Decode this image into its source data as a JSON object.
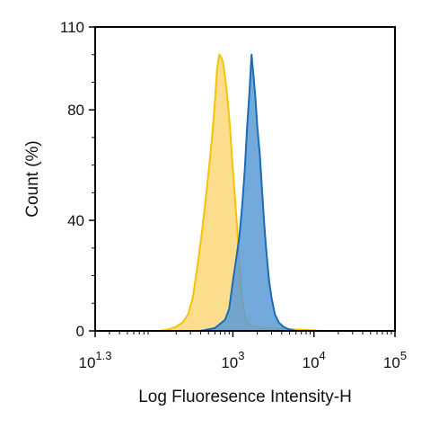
{
  "chart_data": {
    "type": "area",
    "xlabel": "Log Fluoresence Intensity-H",
    "ylabel": "Count  (%)",
    "x_scale": "log",
    "xlim": [
      20,
      100000
    ],
    "ylim": [
      0,
      110
    ],
    "x_ticks": [
      {
        "value": 20,
        "base": "10",
        "exp": "1.3"
      },
      {
        "value": 1000,
        "base": "10",
        "exp": "3"
      },
      {
        "value": 10000,
        "base": "10",
        "exp": "4"
      },
      {
        "value": 100000,
        "base": "10",
        "exp": "5"
      }
    ],
    "y_ticks": [
      "0",
      "40",
      "80",
      "110"
    ],
    "y_tick_values": [
      0,
      40,
      80,
      110
    ],
    "grid": false,
    "legend": "none",
    "series": [
      {
        "color": "#f5c400",
        "fill": "#fbd77a",
        "points": [
          [
            120,
            0
          ],
          [
            160,
            0.5
          ],
          [
            200,
            1.5
          ],
          [
            240,
            3
          ],
          [
            280,
            6
          ],
          [
            320,
            12
          ],
          [
            360,
            22
          ],
          [
            400,
            32
          ],
          [
            440,
            42
          ],
          [
            480,
            52
          ],
          [
            520,
            62
          ],
          [
            560,
            72
          ],
          [
            600,
            83
          ],
          [
            640,
            95
          ],
          [
            680,
            100
          ],
          [
            720,
            99
          ],
          [
            760,
            97
          ],
          [
            800,
            92
          ],
          [
            860,
            84
          ],
          [
            920,
            74
          ],
          [
            980,
            62
          ],
          [
            1040,
            52
          ],
          [
            1100,
            42
          ],
          [
            1150,
            34
          ],
          [
            1200,
            24
          ],
          [
            1260,
            16
          ],
          [
            1320,
            10
          ],
          [
            1400,
            6
          ],
          [
            1500,
            3
          ],
          [
            1700,
            2
          ],
          [
            2000,
            1.5
          ],
          [
            2500,
            1
          ],
          [
            3000,
            1
          ],
          [
            4000,
            0.8
          ],
          [
            6000,
            0.5
          ],
          [
            9000,
            0.3
          ],
          [
            12000,
            0
          ]
        ]
      },
      {
        "color": "#1c6bb5",
        "fill": "#5b9bd5",
        "points": [
          [
            400,
            0
          ],
          [
            600,
            1
          ],
          [
            800,
            4
          ],
          [
            900,
            8
          ],
          [
            1000,
            18
          ],
          [
            1100,
            26
          ],
          [
            1200,
            34
          ],
          [
            1300,
            45
          ],
          [
            1400,
            58
          ],
          [
            1500,
            74
          ],
          [
            1600,
            86
          ],
          [
            1700,
            100
          ],
          [
            1800,
            92
          ],
          [
            1900,
            84
          ],
          [
            2000,
            74
          ],
          [
            2150,
            64
          ],
          [
            2300,
            50
          ],
          [
            2450,
            38
          ],
          [
            2600,
            28
          ],
          [
            2800,
            18
          ],
          [
            3000,
            12
          ],
          [
            3300,
            6
          ],
          [
            3700,
            3
          ],
          [
            4200,
            1.5
          ],
          [
            5000,
            0.5
          ],
          [
            6000,
            0
          ]
        ]
      }
    ]
  }
}
